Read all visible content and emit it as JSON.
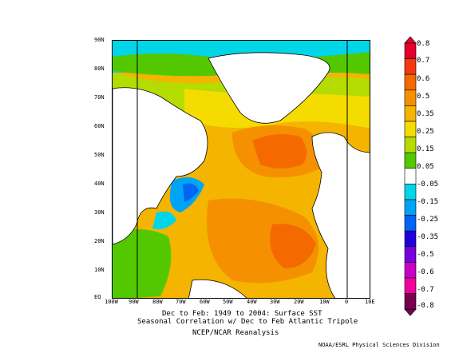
{
  "map": {
    "caption_line1": "Dec to Feb: 1949 to 2004: Surface SST",
    "caption_line2": "Seasonal Correlation w/ Dec to Feb Atlantic Tripole",
    "dataset": "NCEP/NCAR Reanalysis",
    "credit": "NOAA/ESRL Physical Sciences Division",
    "lat_labels": [
      "90N",
      "80N",
      "70N",
      "60N",
      "50N",
      "40N",
      "30N",
      "20N",
      "10N",
      "EQ"
    ],
    "lon_labels": [
      "100W",
      "90W",
      "80W",
      "70W",
      "60W",
      "50W",
      "40W",
      "30W",
      "20W",
      "10W",
      "0",
      "10E"
    ]
  },
  "colorbar": {
    "labels": [
      "0.8",
      "0.7",
      "0.6",
      "0.5",
      "0.35",
      "0.25",
      "0.15",
      "0.05",
      "-0.05",
      "-0.15",
      "-0.25",
      "-0.35",
      "-0.5",
      "-0.6",
      "-0.7",
      "-0.8"
    ],
    "colors": [
      "#e4002b",
      "#f2390f",
      "#f56a00",
      "#f59100",
      "#f5b400",
      "#f5dc00",
      "#b4dc00",
      "#53c800",
      "#ffffff",
      "#00d6e8",
      "#00a4f5",
      "#0064f5",
      "#1e00dc",
      "#7800dc",
      "#c800c8",
      "#f000a0",
      "#780050"
    ]
  }
}
